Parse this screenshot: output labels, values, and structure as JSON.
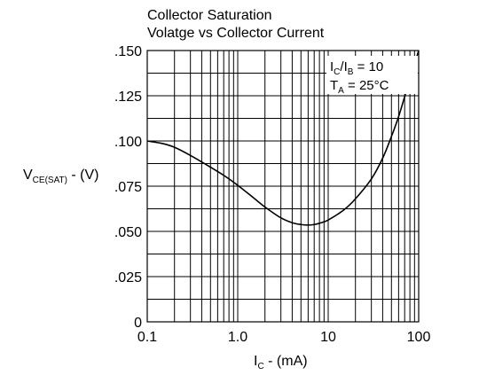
{
  "chart_data": {
    "type": "line",
    "title_line1": "Collector Saturation",
    "title_line2": "Volatge vs Collector Current",
    "xlabel": {
      "main": "I",
      "sub": "C",
      "rest": " - (mA)"
    },
    "ylabel": {
      "main": "V",
      "sub": "CE(SAT)",
      "rest": " - (V)"
    },
    "xscale": "log",
    "xlim": [
      0.1,
      100
    ],
    "ylim": [
      0,
      0.15
    ],
    "xticks": [
      {
        "value": 0.1,
        "label": "0.1"
      },
      {
        "value": 1,
        "label": "1.0"
      },
      {
        "value": 10,
        "label": "10"
      },
      {
        "value": 100,
        "label": "100"
      }
    ],
    "yticks": [
      {
        "value": 0,
        "label": "0"
      },
      {
        "value": 0.025,
        "label": ".025"
      },
      {
        "value": 0.05,
        "label": ".050"
      },
      {
        "value": 0.075,
        "label": ".075"
      },
      {
        "value": 0.1,
        "label": ".100"
      },
      {
        "value": 0.125,
        "label": ".125"
      },
      {
        "value": 0.15,
        "label": ".150"
      }
    ],
    "grid": true,
    "annotation_line1": {
      "main": "I",
      "sub1": "C",
      "mid": "/I",
      "sub2": "B",
      "rest": " = 10"
    },
    "annotation_line2": {
      "main": "T",
      "sub": "A",
      "rest": " = 25°C"
    },
    "series": [
      {
        "x": [
          0.1,
          0.15,
          0.2,
          0.3,
          0.5,
          0.7,
          1.0,
          1.5,
          2.0,
          3.0,
          4.0,
          5.0,
          6.0,
          7.0,
          8.0,
          10,
          15,
          20,
          30,
          40,
          50,
          60,
          70,
          80,
          90,
          100
        ],
        "y": [
          0.1,
          0.0985,
          0.0965,
          0.092,
          0.0855,
          0.081,
          0.0755,
          0.0685,
          0.0635,
          0.0575,
          0.0548,
          0.0538,
          0.0535,
          0.0538,
          0.0545,
          0.0563,
          0.062,
          0.068,
          0.079,
          0.0905,
          0.1025,
          0.1135,
          0.1245,
          0.1345,
          0.1425,
          0.15
        ]
      }
    ]
  }
}
